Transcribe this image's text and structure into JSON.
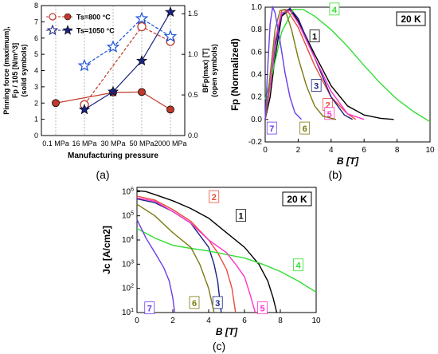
{
  "chart_data": [
    {
      "panel": "(a)",
      "type": "line",
      "xlabel": "Manufacturing pressure",
      "ylabel_left_lines": [
        "Pinning force (maximum),",
        "Fp / 10^5 [N/m^3]",
        "(solid symbols)"
      ],
      "ylabel_right_lines": [
        "BFp(max) [T]",
        "(open symbols)"
      ],
      "categories": [
        "0.1 MPa",
        "16 MPa",
        "30 MPa",
        "50 MPa",
        "2000 MPa"
      ],
      "ylim_left": [
        0,
        8
      ],
      "yticks_left": [
        0,
        1,
        2,
        3,
        4,
        5,
        6,
        7,
        8
      ],
      "ylim_right": [
        0,
        1.6
      ],
      "yticks_right": [
        0.0,
        0.5,
        1.0,
        1.5
      ],
      "grid": "vertical",
      "legend": "top-left",
      "series": [
        {
          "name": "Ts=800 °C",
          "axis": "left",
          "symbol": "filled-circle",
          "color": "#c0392b",
          "values": [
            2.0,
            null,
            2.65,
            2.68,
            1.6
          ]
        },
        {
          "name": "Ts=800 °C",
          "axis": "right",
          "symbol": "open-circle",
          "color": "#c0392b",
          "values": [
            null,
            0.38,
            null,
            1.34,
            1.16
          ]
        },
        {
          "name": "Ts=1050 °C",
          "axis": "left",
          "symbol": "filled-star",
          "color": "#1a237e",
          "values": [
            null,
            1.6,
            2.7,
            4.6,
            7.6
          ]
        },
        {
          "name": "Ts=1050 °C",
          "axis": "right",
          "symbol": "open-star",
          "color": "#1a53d6",
          "values": [
            null,
            0.86,
            1.09,
            1.44,
            1.22
          ]
        }
      ]
    },
    {
      "panel": "(b)",
      "type": "line",
      "xlabel": "B [T]",
      "ylabel": "Fp (Normalized)",
      "annotation": "20 K",
      "xlim": [
        0,
        10
      ],
      "ylim": [
        -0.2,
        1.0
      ],
      "xticks": [
        0,
        2,
        4,
        6,
        8,
        10
      ],
      "yticks": [
        -0.2,
        0.0,
        0.2,
        0.4,
        0.6,
        0.8,
        1.0
      ],
      "series": [
        {
          "name": "1",
          "color": "#000000",
          "x": [
            0,
            0.3,
            0.6,
            1.0,
            1.5,
            2.0,
            3.0,
            4.0,
            5.0,
            6.0,
            7.0,
            7.8
          ],
          "y": [
            0,
            0.2,
            0.55,
            0.92,
            0.98,
            0.88,
            0.58,
            0.3,
            0.12,
            0.04,
            0.01,
            0.0
          ]
        },
        {
          "name": "2",
          "color": "#e74c3c",
          "x": [
            0,
            0.3,
            0.6,
            1.0,
            1.3,
            2.0,
            3.0,
            4.0,
            5.0,
            5.5
          ],
          "y": [
            0,
            0.3,
            0.7,
            0.97,
            0.98,
            0.82,
            0.48,
            0.2,
            0.05,
            0.0
          ]
        },
        {
          "name": "3",
          "color": "#1a237e",
          "x": [
            0,
            0.3,
            0.6,
            1.0,
            1.5,
            2.0,
            3.0,
            4.0,
            4.8,
            5.3
          ],
          "y": [
            0,
            0.3,
            0.65,
            0.93,
            0.99,
            0.9,
            0.55,
            0.2,
            0.04,
            0.0
          ]
        },
        {
          "name": "4",
          "color": "#33dd33",
          "x": [
            0,
            0.5,
            1.0,
            1.7,
            2.3,
            3.0,
            4.0,
            5.0,
            6.0,
            7.0,
            8.0,
            9.0,
            10.0
          ],
          "y": [
            0.18,
            0.45,
            0.78,
            0.98,
            0.98,
            0.92,
            0.8,
            0.65,
            0.48,
            0.32,
            0.18,
            0.07,
            -0.02
          ]
        },
        {
          "name": "5",
          "color": "#ff33cc",
          "x": [
            0,
            0.3,
            0.6,
            1.0,
            1.5,
            2.0,
            3.0,
            4.0,
            5.0,
            6.0
          ],
          "y": [
            0,
            0.3,
            0.7,
            0.95,
            0.97,
            0.86,
            0.55,
            0.25,
            0.05,
            0.0
          ]
        },
        {
          "name": "6",
          "color": "#7a7a10",
          "x": [
            0,
            0.3,
            0.6,
            0.9,
            1.2,
            1.6,
            2.0,
            2.5,
            3.0,
            3.5,
            4.3
          ],
          "y": [
            0,
            0.4,
            0.8,
            0.97,
            0.98,
            0.8,
            0.55,
            0.3,
            0.12,
            0.03,
            0.0
          ]
        },
        {
          "name": "7",
          "color": "#6a3de8",
          "x": [
            0,
            0.15,
            0.3,
            0.45,
            0.6,
            0.9,
            1.2,
            1.5,
            1.8,
            2.2
          ],
          "y": [
            0,
            0.45,
            0.85,
            1.0,
            0.95,
            0.7,
            0.42,
            0.2,
            0.06,
            0.0
          ]
        }
      ]
    },
    {
      "panel": "(c)",
      "type": "line",
      "xlabel": "B [T]",
      "ylabel": "Jc [A/cm2]",
      "annotation": "20 K",
      "yscale": "log",
      "xlim": [
        0,
        10
      ],
      "ylim": [
        10,
        1500000
      ],
      "xticks": [
        0,
        2,
        4,
        6,
        8,
        10
      ],
      "ytick_labels": [
        "10^1",
        "10^2",
        "10^3",
        "10^4",
        "10^5",
        "10^6"
      ],
      "series": [
        {
          "name": "1",
          "color": "#000000",
          "x": [
            0,
            0.5,
            1,
            2,
            3,
            4,
            5,
            6,
            6.8,
            7.3,
            7.6,
            7.8
          ],
          "y": [
            1100000,
            1000000,
            750000,
            420000,
            200000,
            80000,
            20000,
            5000,
            1000,
            200,
            40,
            10
          ]
        },
        {
          "name": "2",
          "color": "#e74c3c",
          "x": [
            0,
            1,
            2,
            3,
            4,
            4.5,
            5,
            5.3,
            5.5
          ],
          "y": [
            650000,
            450000,
            180000,
            60000,
            10000,
            3000,
            600,
            100,
            10
          ]
        },
        {
          "name": "3",
          "color": "#1a237e",
          "x": [
            0,
            1,
            2,
            3,
            4,
            4.3,
            4.5,
            4.7
          ],
          "y": [
            500000,
            350000,
            150000,
            50000,
            5000,
            1000,
            200,
            10
          ]
        },
        {
          "name": "4",
          "color": "#33dd33",
          "x": [
            0,
            1,
            2,
            3,
            4,
            5,
            6,
            7,
            8,
            9,
            10
          ],
          "y": [
            30000,
            12000,
            6000,
            4500,
            3500,
            2500,
            1800,
            1000,
            500,
            200,
            70
          ]
        },
        {
          "name": "5",
          "color": "#ff33cc",
          "x": [
            0,
            1,
            2,
            3,
            4,
            5,
            5.5,
            6,
            6.3,
            6.6
          ],
          "y": [
            550000,
            400000,
            150000,
            50000,
            10000,
            3000,
            1000,
            300,
            60,
            10
          ]
        },
        {
          "name": "6",
          "color": "#7a7a10",
          "x": [
            0,
            1,
            2,
            3,
            3.5,
            4,
            4.3
          ],
          "y": [
            300000,
            100000,
            20000,
            5000,
            1000,
            100,
            10
          ]
        },
        {
          "name": "7",
          "color": "#6a3de8",
          "x": [
            0,
            0.5,
            1,
            1.5,
            1.8,
            2.0,
            2.1
          ],
          "y": [
            70000,
            12000,
            3000,
            700,
            200,
            40,
            10
          ]
        }
      ]
    }
  ],
  "captions": {
    "a": "(a)",
    "b": "(b)",
    "c": "(c)"
  }
}
